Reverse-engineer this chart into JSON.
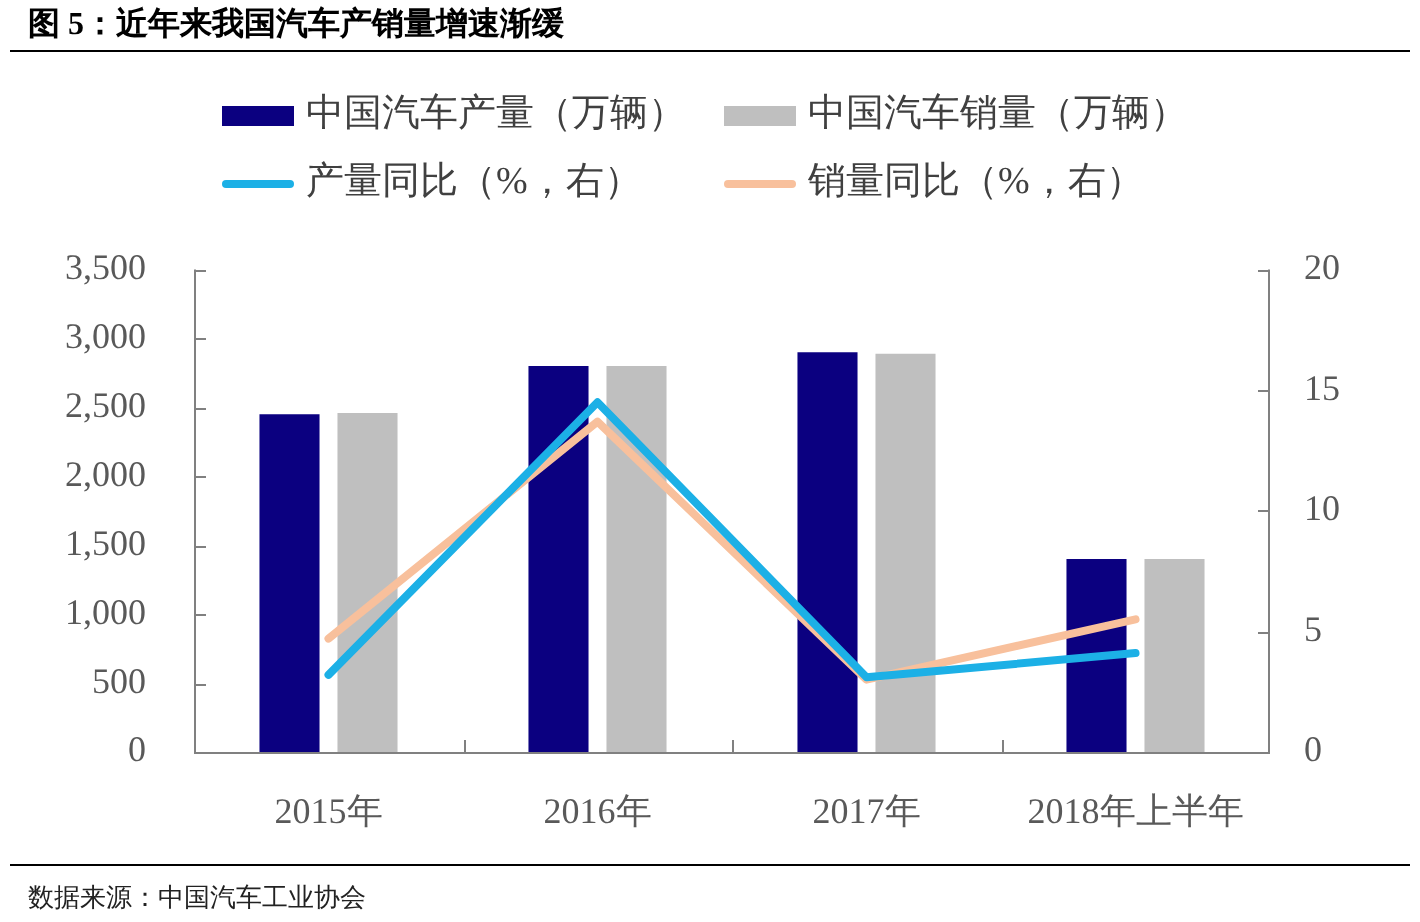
{
  "chart_data": {
    "type": "bar",
    "title": "图 5：近年来我国汽车产销量增速渐缓",
    "categories": [
      "2015年",
      "2016年",
      "2017年",
      "2018年上半年"
    ],
    "series": [
      {
        "name": "中国汽车产量（万辆）",
        "color": "#0b0080",
        "values": [
          2450,
          2800,
          2900,
          1400
        ]
      },
      {
        "name": "中国汽车销量（万辆）",
        "color": "#bfbfbf",
        "values": [
          2460,
          2800,
          2890,
          1400
        ]
      },
      {
        "name": "产量同比（%，右）",
        "type": "line",
        "axis": "y2",
        "color": "#1cb0e6",
        "values": [
          3.2,
          14.5,
          3.1,
          4.1
        ]
      },
      {
        "name": "销量同比（%，右）",
        "type": "line",
        "axis": "y2",
        "color": "#f8c09c",
        "values": [
          4.7,
          13.7,
          3.0,
          5.5
        ]
      }
    ],
    "ylim": [
      0,
      3500
    ],
    "yticks": [
      0,
      500,
      {
        "value": 1000,
        "label": "1,000"
      },
      {
        "value": 1500,
        "label": "1,500"
      },
      {
        "value": 2000,
        "label": "2,000"
      },
      {
        "value": 2500,
        "label": "2,500"
      },
      {
        "value": 3000,
        "label": "3,000"
      },
      {
        "value": 3500,
        "label": "3,500"
      }
    ],
    "y2lim": [
      0,
      20
    ],
    "y2ticks": [
      0,
      5,
      10,
      15,
      20
    ],
    "legend": "top",
    "annotations": [
      "数据来源：中国汽车工业协会"
    ]
  }
}
